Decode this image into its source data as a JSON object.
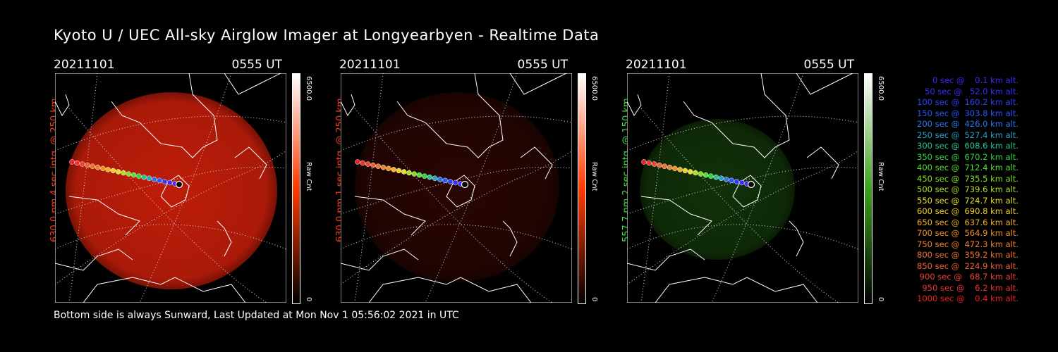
{
  "title": "Kyoto U / UEC All-sky Airglow Imager at Longyearbyen - Realtime Data",
  "footer": "Bottom side is always Sunward, Last Updated at Mon Nov  1 05:56:02 2021 in UTC",
  "panels": [
    {
      "date": "20211101",
      "time": "0555 UT",
      "ylabel": "630.0 nm 4 sec intg. @ 250 km",
      "label_color": "#ff3a1a",
      "cbar_max": "6500.0",
      "cbar_min": "0",
      "cbar_unit": "Raw Cnt",
      "glow_color": "#c81e0a",
      "glow_level": 0.85,
      "cbar_color": "#ff3a00"
    },
    {
      "date": "20211101",
      "time": "0555 UT",
      "ylabel": "630.0 nm 1 sec intg. @ 250 km",
      "label_color": "#ff3a1a",
      "cbar_max": "6500.0",
      "cbar_min": "0",
      "cbar_unit": "Raw Cnt",
      "glow_color": "#5a0d05",
      "glow_level": 0.35,
      "cbar_color": "#ff3a00"
    },
    {
      "date": "20211101",
      "time": "0555 UT",
      "ylabel": "557.7 nm 2 sec intg. @ 150 km",
      "label_color": "#40e040",
      "cbar_max": "6500.0",
      "cbar_min": "0",
      "cbar_unit": "Raw Cnt",
      "glow_color": "#1f5a10",
      "glow_level": 0.45,
      "cbar_color": "#40a020"
    }
  ],
  "legend": [
    {
      "text": "   0 sec @    0.1 km alt.",
      "color": "#3a2cff"
    },
    {
      "text": "  50 sec @   52.0 km alt.",
      "color": "#3a2cff"
    },
    {
      "text": " 100 sec @  160.2 km alt.",
      "color": "#2a40ff"
    },
    {
      "text": " 150 sec @  303.8 km alt.",
      "color": "#2a58ff"
    },
    {
      "text": " 200 sec @  426.0 km alt.",
      "color": "#2a78f0"
    },
    {
      "text": " 250 sec @  527.4 km alt.",
      "color": "#2aa0c8"
    },
    {
      "text": " 300 sec @  608.6 km alt.",
      "color": "#20c890"
    },
    {
      "text": " 350 sec @  670.2 km alt.",
      "color": "#30d840"
    },
    {
      "text": " 400 sec @  712.4 km alt.",
      "color": "#50e030"
    },
    {
      "text": " 450 sec @  735.5 km alt.",
      "color": "#80e020"
    },
    {
      "text": " 500 sec @  739.6 km alt.",
      "color": "#b0e020"
    },
    {
      "text": " 550 sec @  724.7 km alt.",
      "color": "#e0e020"
    },
    {
      "text": " 600 sec @  690.8 km alt.",
      "color": "#f0d020"
    },
    {
      "text": " 650 sec @  637.6 km alt.",
      "color": "#f0b020"
    },
    {
      "text": " 700 sec @  564.9 km alt.",
      "color": "#f09020"
    },
    {
      "text": " 750 sec @  472.3 km alt.",
      "color": "#f08030"
    },
    {
      "text": " 800 sec @  359.2 km alt.",
      "color": "#f07030"
    },
    {
      "text": " 850 sec @  224.9 km alt.",
      "color": "#f06030"
    },
    {
      "text": " 900 sec @   68.7 km alt.",
      "color": "#f04030"
    },
    {
      "text": " 950 sec @    6.2 km alt.",
      "color": "#f03030"
    },
    {
      "text": "1000 sec @    0.4 km alt.",
      "color": "#f02020"
    }
  ]
}
